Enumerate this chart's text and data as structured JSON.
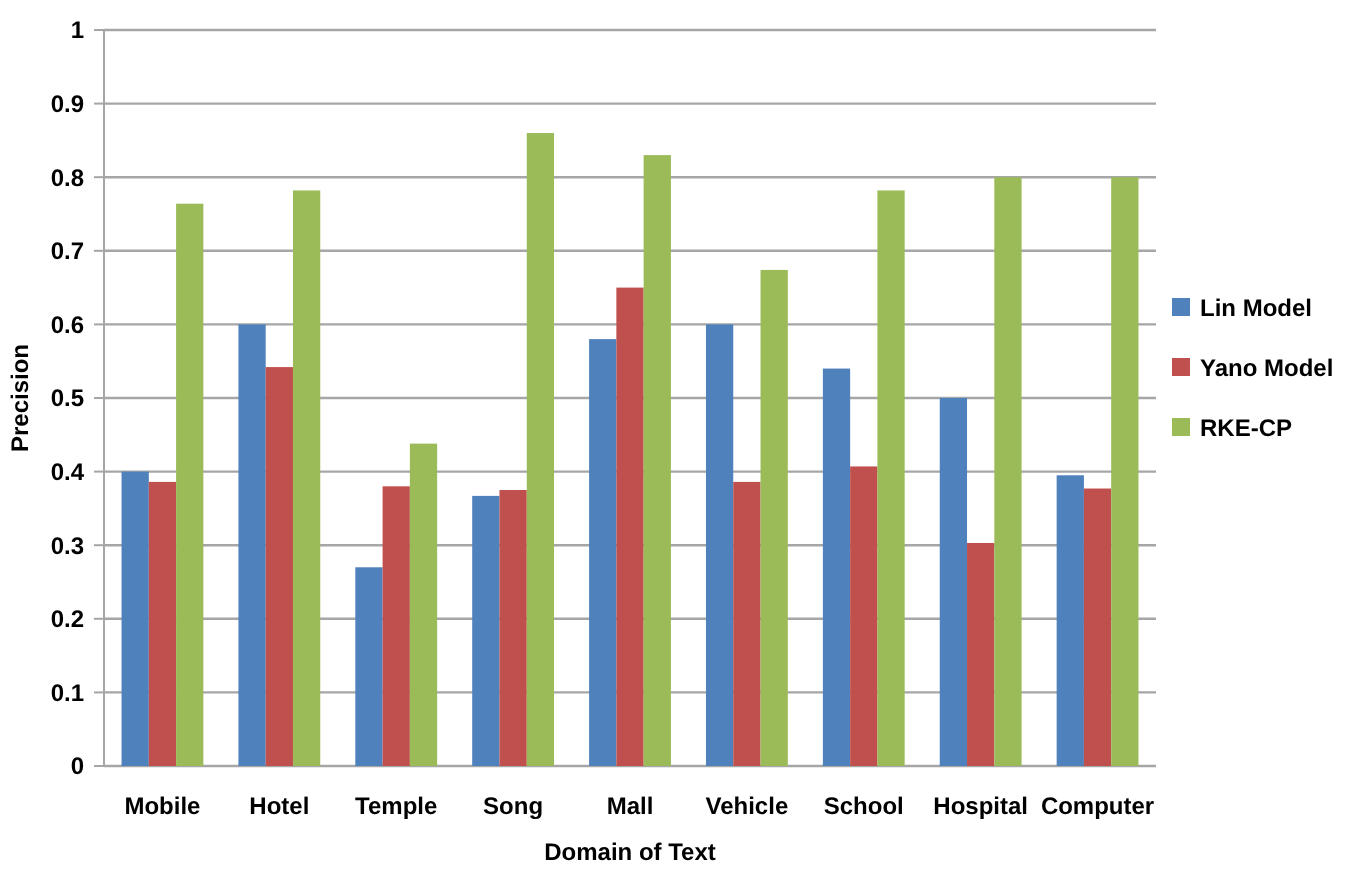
{
  "chart_data": {
    "type": "bar",
    "xlabel": "Domain of Text",
    "ylabel": "Precision",
    "categories": [
      "Mobile",
      "Hotel",
      "Temple",
      "Song",
      "Mall",
      "Vehicle",
      "School",
      "Hospital",
      "Computer"
    ],
    "series": [
      {
        "name": "Lin Model",
        "color": "#4f81bd",
        "values": [
          0.4,
          0.6,
          0.27,
          0.367,
          0.58,
          0.6,
          0.54,
          0.5,
          0.395
        ]
      },
      {
        "name": "Yano Model",
        "color": "#c0504d",
        "values": [
          0.386,
          0.542,
          0.38,
          0.375,
          0.65,
          0.386,
          0.407,
          0.303,
          0.377
        ]
      },
      {
        "name": "RKE-CP",
        "color": "#9bbb59",
        "values": [
          0.764,
          0.782,
          0.438,
          0.86,
          0.83,
          0.674,
          0.782,
          0.8,
          0.8
        ]
      }
    ],
    "ylim": [
      0,
      1
    ],
    "yticks": [
      0,
      0.1,
      0.2,
      0.3,
      0.4,
      0.5,
      0.6,
      0.7,
      0.8,
      0.9,
      1
    ],
    "grid": "y",
    "legend": "right"
  }
}
